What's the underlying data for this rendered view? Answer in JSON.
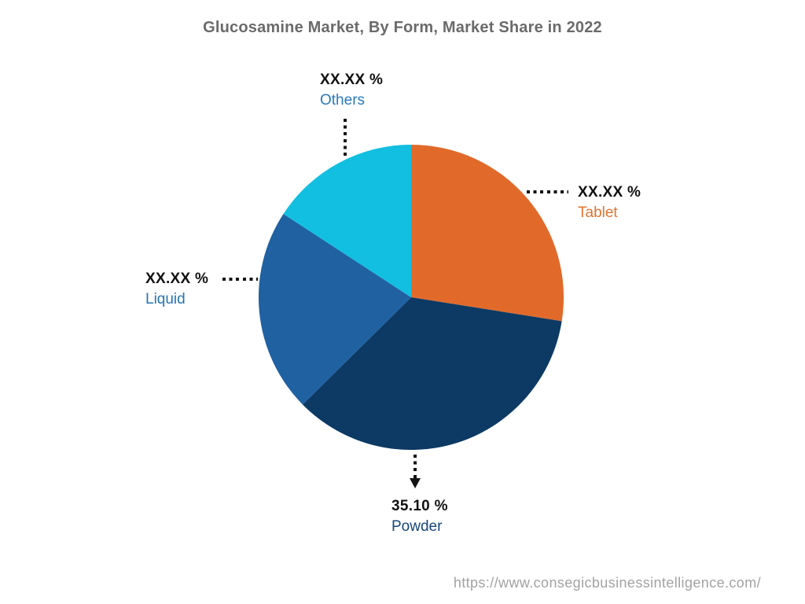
{
  "title": "Glucosamine Market, By Form, Market Share in 2022",
  "footer": {
    "url": "https://www.consegicbusinessintelligence.com/"
  },
  "chart_data": {
    "type": "pie",
    "title": "Glucosamine Market, By Form, Market Share in 2022",
    "start_angle_deg": 0,
    "direction": "clockwise",
    "legend_position": "none",
    "leader_line_color": "#141414",
    "slices": [
      {
        "label": "Tablet",
        "value_label": "XX.XX %",
        "value_pct_est": 27.5,
        "color": "#e16a2b",
        "label_color": "#e0742f"
      },
      {
        "label": "Powder",
        "value_label": "35.10 %",
        "value_pct_est": 35.1,
        "color": "#0c3a64",
        "label_color": "#164679"
      },
      {
        "label": "Liquid",
        "value_label": "XX.XX %",
        "value_pct_est": 21.6,
        "color": "#2061a2",
        "label_color": "#2575b5"
      },
      {
        "label": "Others",
        "value_label": "XX.XX %",
        "value_pct_est": 15.8,
        "color": "#12bfe0",
        "label_color": "#2979bb"
      }
    ]
  }
}
